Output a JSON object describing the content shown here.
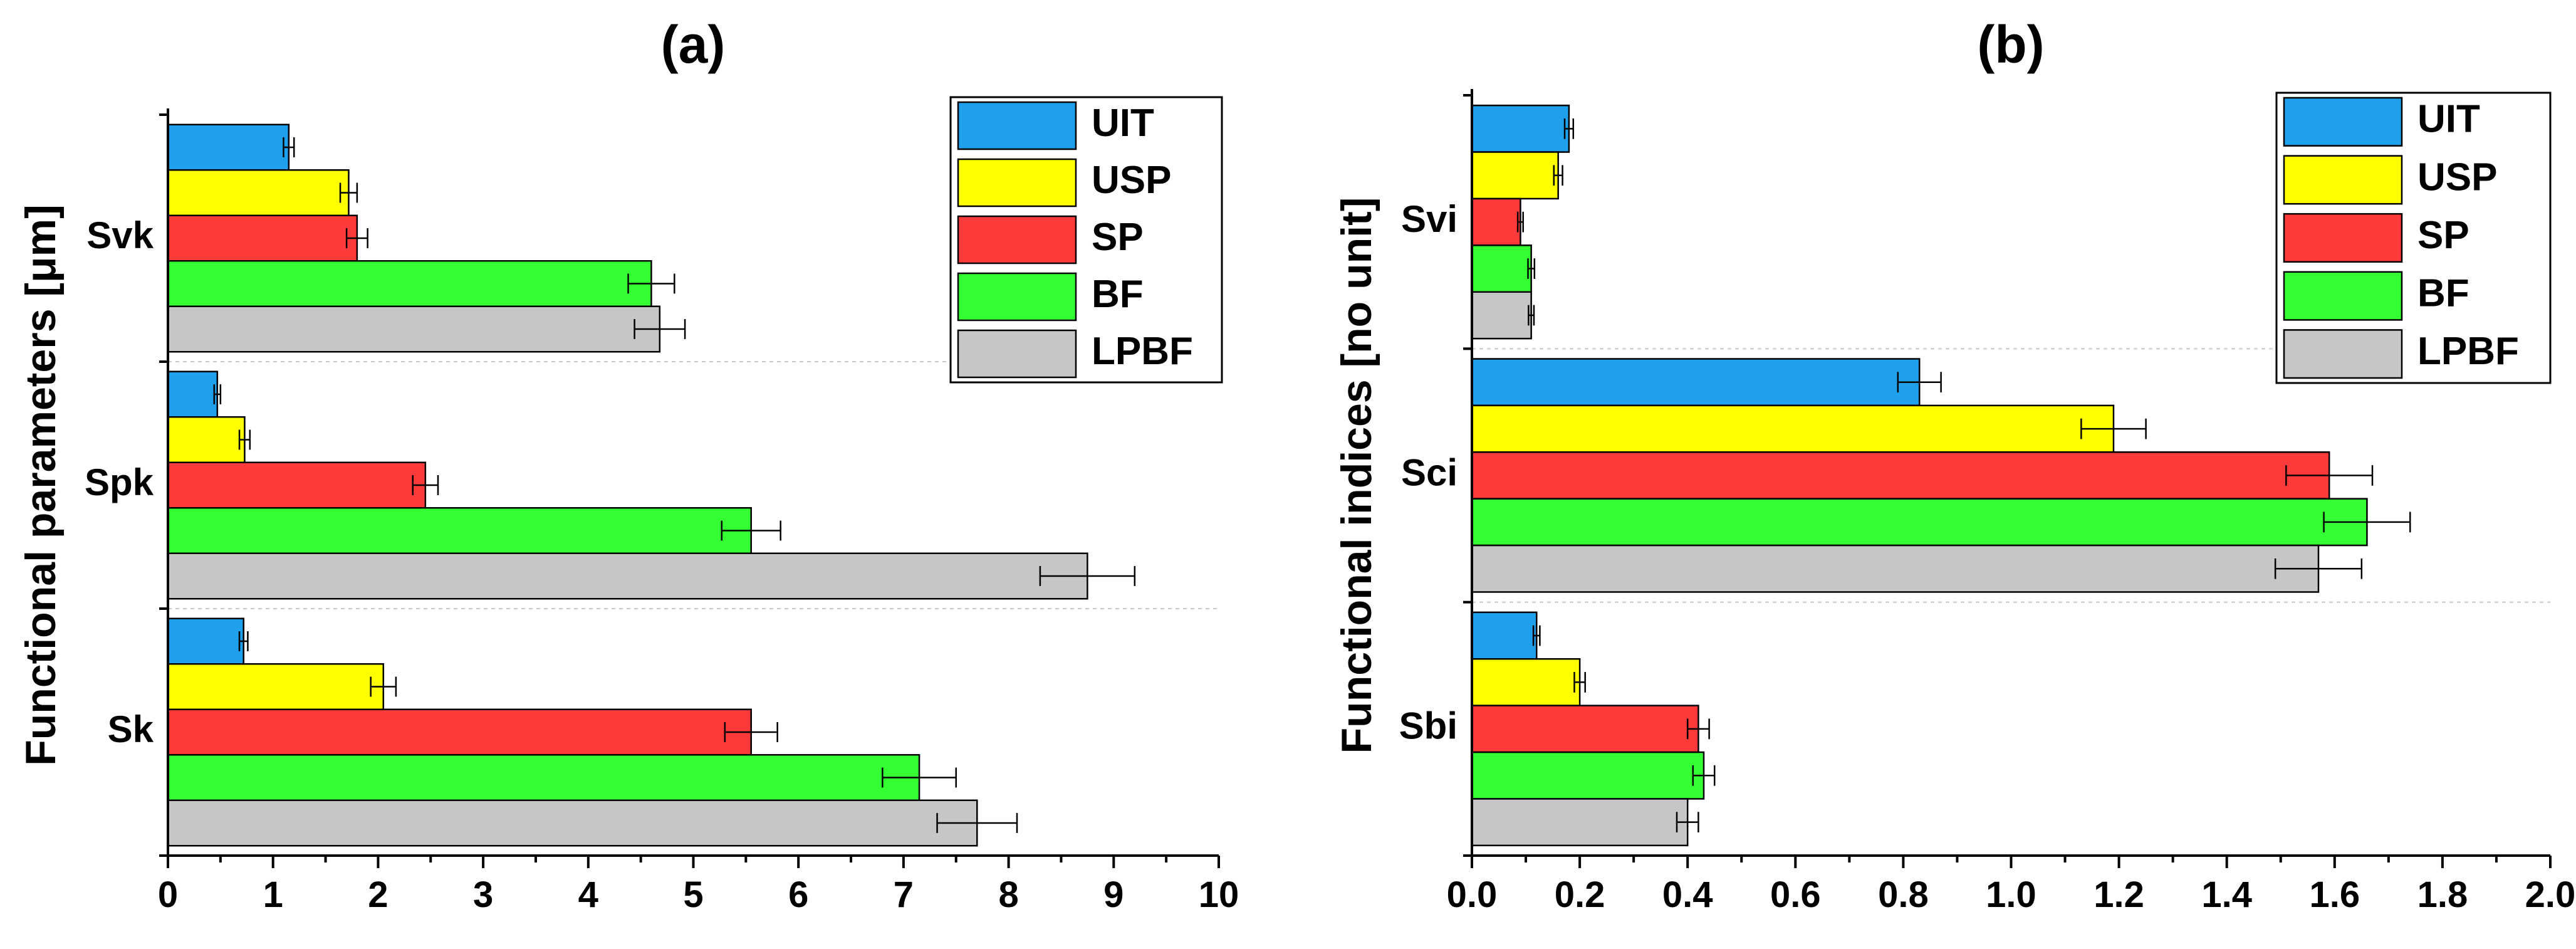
{
  "chart_data": [
    {
      "type": "bar",
      "orientation": "horizontal",
      "title": "(a)",
      "ylabel": "Functional parameters [μm]",
      "xlabel": "",
      "xlim": [
        0,
        10
      ],
      "xticks": [
        "0",
        "1",
        "2",
        "3",
        "4",
        "5",
        "6",
        "7",
        "8",
        "9",
        "10"
      ],
      "categories": [
        "Svk",
        "Spk",
        "Sk"
      ],
      "series": [
        {
          "name": "UIT",
          "color": "#1ea0ec",
          "values": [
            1.15,
            0.47,
            0.72
          ],
          "errors": [
            0.05,
            0.03,
            0.04
          ]
        },
        {
          "name": "USP",
          "color": "#ffff00",
          "values": [
            1.72,
            0.73,
            2.05
          ],
          "errors": [
            0.08,
            0.05,
            0.12
          ]
        },
        {
          "name": "SP",
          "color": "#ff3a3a",
          "values": [
            1.8,
            2.45,
            5.55
          ],
          "errors": [
            0.1,
            0.12,
            0.25
          ]
        },
        {
          "name": "BF",
          "color": "#33ff33",
          "values": [
            4.6,
            5.55,
            7.15
          ],
          "errors": [
            0.22,
            0.28,
            0.35
          ]
        },
        {
          "name": "LPBF",
          "color": "#c6c6c6",
          "values": [
            4.68,
            8.75,
            7.7
          ],
          "errors": [
            0.24,
            0.45,
            0.38
          ]
        }
      ],
      "legend_position": "top-right"
    },
    {
      "type": "bar",
      "orientation": "horizontal",
      "title": "(b)",
      "ylabel": "Functional indices [no unit]",
      "xlabel": "",
      "xlim": [
        0,
        2.0
      ],
      "xticks": [
        "0.0",
        "0.2",
        "0.4",
        "0.6",
        "0.8",
        "1.0",
        "1.2",
        "1.4",
        "1.6",
        "1.8",
        "2.0"
      ],
      "categories": [
        "Svi",
        "Sci",
        "Sbi"
      ],
      "series": [
        {
          "name": "UIT",
          "color": "#1ea0ec",
          "values": [
            0.18,
            0.83,
            0.12
          ],
          "errors": [
            0.008,
            0.04,
            0.006
          ]
        },
        {
          "name": "USP",
          "color": "#ffff00",
          "values": [
            0.16,
            1.19,
            0.2
          ],
          "errors": [
            0.008,
            0.06,
            0.01
          ]
        },
        {
          "name": "SP",
          "color": "#ff3a3a",
          "values": [
            0.09,
            1.59,
            0.42
          ],
          "errors": [
            0.005,
            0.08,
            0.02
          ]
        },
        {
          "name": "BF",
          "color": "#33ff33",
          "values": [
            0.11,
            1.66,
            0.43
          ],
          "errors": [
            0.006,
            0.08,
            0.02
          ]
        },
        {
          "name": "LPBF",
          "color": "#c6c6c6",
          "values": [
            0.11,
            1.57,
            0.4
          ],
          "errors": [
            0.005,
            0.08,
            0.02
          ]
        }
      ],
      "legend_position": "top-right"
    }
  ]
}
